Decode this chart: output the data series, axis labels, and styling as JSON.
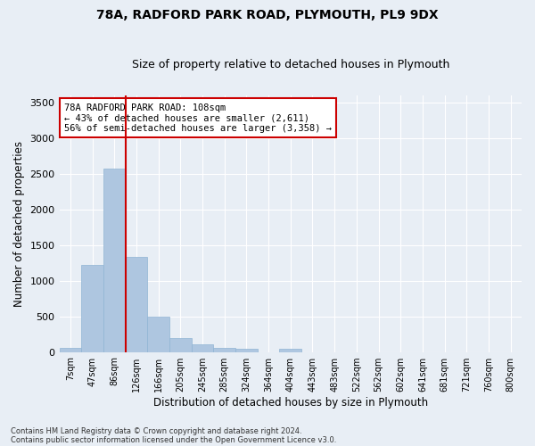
{
  "title1": "78A, RADFORD PARK ROAD, PLYMOUTH, PL9 9DX",
  "title2": "Size of property relative to detached houses in Plymouth",
  "xlabel": "Distribution of detached houses by size in Plymouth",
  "ylabel": "Number of detached properties",
  "bar_color": "#aec6e0",
  "bar_edge_color": "#90b4d4",
  "vline_color": "#cc0000",
  "categories": [
    "7sqm",
    "47sqm",
    "86sqm",
    "126sqm",
    "166sqm",
    "205sqm",
    "245sqm",
    "285sqm",
    "324sqm",
    "364sqm",
    "404sqm",
    "443sqm",
    "483sqm",
    "522sqm",
    "562sqm",
    "602sqm",
    "641sqm",
    "681sqm",
    "721sqm",
    "760sqm",
    "800sqm"
  ],
  "values": [
    55,
    1220,
    2580,
    1340,
    500,
    195,
    110,
    55,
    50,
    0,
    40,
    0,
    0,
    0,
    0,
    0,
    0,
    0,
    0,
    0,
    0
  ],
  "ylim": [
    0,
    3600
  ],
  "yticks": [
    0,
    500,
    1000,
    1500,
    2000,
    2500,
    3000,
    3500
  ],
  "annotation_line1": "78A RADFORD PARK ROAD: 108sqm",
  "annotation_line2": "← 43% of detached houses are smaller (2,611)",
  "annotation_line3": "56% of semi-detached houses are larger (3,358) →",
  "annotation_box_color": "#ffffff",
  "annotation_box_edge": "#cc0000",
  "background_color": "#e8eef5",
  "footer1": "Contains HM Land Registry data © Crown copyright and database right 2024.",
  "footer2": "Contains public sector information licensed under the Open Government Licence v3.0.",
  "grid_color": "#ffffff"
}
